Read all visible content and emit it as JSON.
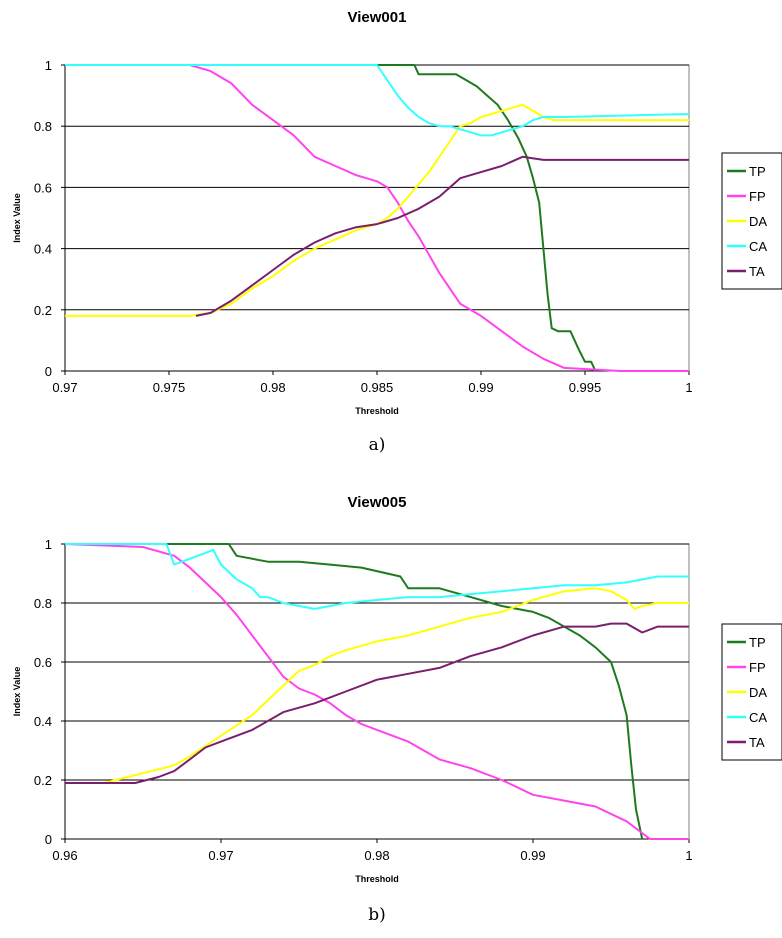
{
  "chart_data": [
    {
      "type": "line",
      "title": "View001",
      "xlabel": "Threshold",
      "ylabel": "Index Value",
      "caption": "a)",
      "xlim": [
        0.97,
        1
      ],
      "ylim": [
        0,
        1
      ],
      "x_ticks": [
        0.97,
        0.975,
        0.98,
        0.985,
        0.99,
        0.995,
        1
      ],
      "x_tick_labels": [
        "0.97",
        "0.975",
        "0.98",
        "0.985",
        "0.99",
        "0.995",
        "1"
      ],
      "y_ticks": [
        0,
        0.2,
        0.4,
        0.6,
        0.8,
        1
      ],
      "y_tick_labels": [
        "0",
        "0.2",
        "0.4",
        "0.6",
        "0.8",
        "1"
      ],
      "grid": "horizontal",
      "legend": "right",
      "series": [
        {
          "name": "TP",
          "color": "#1f7a1f",
          "x": [
            0.97,
            0.9868,
            0.987,
            0.9873,
            0.9888,
            0.9893,
            0.9898,
            0.9903,
            0.9908,
            0.9913,
            0.9918,
            0.9922,
            0.9925,
            0.9928,
            0.993,
            0.9932,
            0.9934,
            0.9937,
            0.9943,
            0.9947,
            0.995,
            0.9953,
            0.9955
          ],
          "y": [
            1,
            1,
            0.97,
            0.97,
            0.97,
            0.95,
            0.93,
            0.9,
            0.87,
            0.82,
            0.76,
            0.7,
            0.63,
            0.55,
            0.4,
            0.25,
            0.14,
            0.13,
            0.13,
            0.07,
            0.03,
            0.03,
            0.0
          ]
        },
        {
          "name": "FP",
          "color": "#ff44ee",
          "x": [
            0.97,
            0.976,
            0.977,
            0.978,
            0.979,
            0.98,
            0.981,
            0.982,
            0.983,
            0.984,
            0.985,
            0.9855,
            0.986,
            0.9865,
            0.987,
            0.9875,
            0.988,
            0.9885,
            0.989,
            0.99,
            0.991,
            0.992,
            0.993,
            0.994,
            0.9967,
            1
          ],
          "y": [
            1,
            1,
            0.98,
            0.94,
            0.87,
            0.82,
            0.77,
            0.7,
            0.67,
            0.64,
            0.62,
            0.6,
            0.55,
            0.49,
            0.44,
            0.38,
            0.32,
            0.27,
            0.22,
            0.18,
            0.13,
            0.08,
            0.04,
            0.01,
            0.0,
            0.0
          ]
        },
        {
          "name": "DA",
          "color": "#ffff00",
          "x": [
            0.97,
            0.976,
            0.977,
            0.978,
            0.979,
            0.98,
            0.981,
            0.982,
            0.983,
            0.984,
            0.985,
            0.9855,
            0.986,
            0.9865,
            0.987,
            0.9875,
            0.988,
            0.9885,
            0.989,
            0.9895,
            0.99,
            0.9905,
            0.991,
            0.9915,
            0.992,
            0.9925,
            0.993,
            0.9935,
            0.994,
            1
          ],
          "y": [
            0.18,
            0.18,
            0.19,
            0.22,
            0.27,
            0.31,
            0.36,
            0.4,
            0.43,
            0.46,
            0.48,
            0.5,
            0.53,
            0.57,
            0.61,
            0.65,
            0.7,
            0.75,
            0.8,
            0.81,
            0.83,
            0.84,
            0.85,
            0.86,
            0.87,
            0.85,
            0.83,
            0.82,
            0.82,
            0.82
          ]
        },
        {
          "name": "CA",
          "color": "#33ffff",
          "x": [
            0.97,
            0.985,
            0.9855,
            0.986,
            0.9865,
            0.987,
            0.9875,
            0.988,
            0.9885,
            0.989,
            0.9895,
            0.99,
            0.9905,
            0.991,
            0.9915,
            0.992,
            0.9925,
            0.993,
            0.994,
            1
          ],
          "y": [
            1,
            1,
            0.95,
            0.9,
            0.86,
            0.83,
            0.81,
            0.8,
            0.8,
            0.79,
            0.78,
            0.77,
            0.77,
            0.78,
            0.79,
            0.8,
            0.82,
            0.83,
            0.83,
            0.84
          ]
        },
        {
          "name": "TA",
          "color": "#7a1f6e",
          "x": [
            0.9763,
            0.977,
            0.978,
            0.979,
            0.98,
            0.981,
            0.982,
            0.983,
            0.984,
            0.985,
            0.986,
            0.987,
            0.988,
            0.989,
            0.99,
            0.991,
            0.992,
            0.993,
            0.994,
            0.995,
            1
          ],
          "y": [
            0.18,
            0.19,
            0.23,
            0.28,
            0.33,
            0.38,
            0.42,
            0.45,
            0.47,
            0.48,
            0.5,
            0.53,
            0.57,
            0.63,
            0.65,
            0.67,
            0.7,
            0.69,
            0.69,
            0.69,
            0.69
          ]
        }
      ]
    },
    {
      "type": "line",
      "title": "View005",
      "xlabel": "Threshold",
      "ylabel": "Index Value",
      "caption": "b)",
      "xlim": [
        0.96,
        1
      ],
      "ylim": [
        0,
        1
      ],
      "x_ticks": [
        0.96,
        0.97,
        0.98,
        0.99,
        1
      ],
      "x_tick_labels": [
        "0.96",
        "0.97",
        "0.98",
        "0.99",
        "1"
      ],
      "y_ticks": [
        0,
        0.2,
        0.4,
        0.6,
        0.8,
        1
      ],
      "y_tick_labels": [
        "0",
        "0.2",
        "0.4",
        "0.6",
        "0.8",
        "1"
      ],
      "grid": "horizontal",
      "legend": "right",
      "series": [
        {
          "name": "TP",
          "color": "#1f7a1f",
          "x": [
            0.96,
            0.9705,
            0.971,
            0.973,
            0.975,
            0.977,
            0.979,
            0.9815,
            0.982,
            0.984,
            0.986,
            0.988,
            0.99,
            0.991,
            0.992,
            0.993,
            0.994,
            0.995,
            0.9955,
            0.996,
            0.9963,
            0.9966,
            0.997
          ],
          "y": [
            1,
            1,
            0.96,
            0.94,
            0.94,
            0.93,
            0.92,
            0.89,
            0.85,
            0.85,
            0.82,
            0.79,
            0.77,
            0.75,
            0.72,
            0.69,
            0.65,
            0.6,
            0.52,
            0.42,
            0.25,
            0.1,
            0.0
          ]
        },
        {
          "name": "FP",
          "color": "#ff44ee",
          "x": [
            0.96,
            0.965,
            0.967,
            0.968,
            0.969,
            0.97,
            0.971,
            0.972,
            0.973,
            0.974,
            0.975,
            0.976,
            0.977,
            0.978,
            0.979,
            0.98,
            0.982,
            0.984,
            0.986,
            0.988,
            0.99,
            0.992,
            0.994,
            0.996,
            0.9975,
            1
          ],
          "y": [
            1,
            0.99,
            0.96,
            0.92,
            0.87,
            0.82,
            0.76,
            0.69,
            0.62,
            0.55,
            0.51,
            0.49,
            0.46,
            0.42,
            0.39,
            0.37,
            0.33,
            0.27,
            0.24,
            0.2,
            0.15,
            0.13,
            0.11,
            0.06,
            0.0,
            0.0
          ]
        },
        {
          "name": "DA",
          "color": "#ffff00",
          "x": [
            0.96,
            0.9625,
            0.967,
            0.968,
            0.97,
            0.972,
            0.974,
            0.975,
            0.976,
            0.977,
            0.978,
            0.98,
            0.982,
            0.984,
            0.986,
            0.988,
            0.99,
            0.992,
            0.994,
            0.995,
            0.996,
            0.9965,
            0.997,
            0.998,
            1
          ],
          "y": [
            0.19,
            0.19,
            0.25,
            0.28,
            0.35,
            0.42,
            0.52,
            0.57,
            0.59,
            0.62,
            0.64,
            0.67,
            0.69,
            0.72,
            0.75,
            0.77,
            0.81,
            0.84,
            0.85,
            0.84,
            0.81,
            0.78,
            0.79,
            0.8,
            0.8
          ]
        },
        {
          "name": "CA",
          "color": "#33ffff",
          "x": [
            0.96,
            0.9665,
            0.967,
            0.968,
            0.969,
            0.9695,
            0.97,
            0.971,
            0.972,
            0.9725,
            0.973,
            0.974,
            0.975,
            0.976,
            0.977,
            0.978,
            0.98,
            0.982,
            0.984,
            0.986,
            0.988,
            0.99,
            0.992,
            0.994,
            0.996,
            0.998,
            1
          ],
          "y": [
            1,
            1,
            0.93,
            0.95,
            0.97,
            0.98,
            0.93,
            0.88,
            0.85,
            0.82,
            0.82,
            0.8,
            0.79,
            0.78,
            0.79,
            0.8,
            0.81,
            0.82,
            0.82,
            0.83,
            0.84,
            0.85,
            0.86,
            0.86,
            0.87,
            0.89,
            0.89
          ]
        },
        {
          "name": "TA",
          "color": "#7a1f6e",
          "x": [
            0.96,
            0.9645,
            0.966,
            0.967,
            0.968,
            0.969,
            0.97,
            0.972,
            0.974,
            0.976,
            0.978,
            0.98,
            0.982,
            0.984,
            0.986,
            0.988,
            0.99,
            0.992,
            0.994,
            0.995,
            0.996,
            0.997,
            0.998,
            1
          ],
          "y": [
            0.19,
            0.19,
            0.21,
            0.23,
            0.27,
            0.31,
            0.33,
            0.37,
            0.43,
            0.46,
            0.5,
            0.54,
            0.56,
            0.58,
            0.62,
            0.65,
            0.69,
            0.72,
            0.72,
            0.73,
            0.73,
            0.7,
            0.72,
            0.72
          ]
        }
      ]
    }
  ]
}
